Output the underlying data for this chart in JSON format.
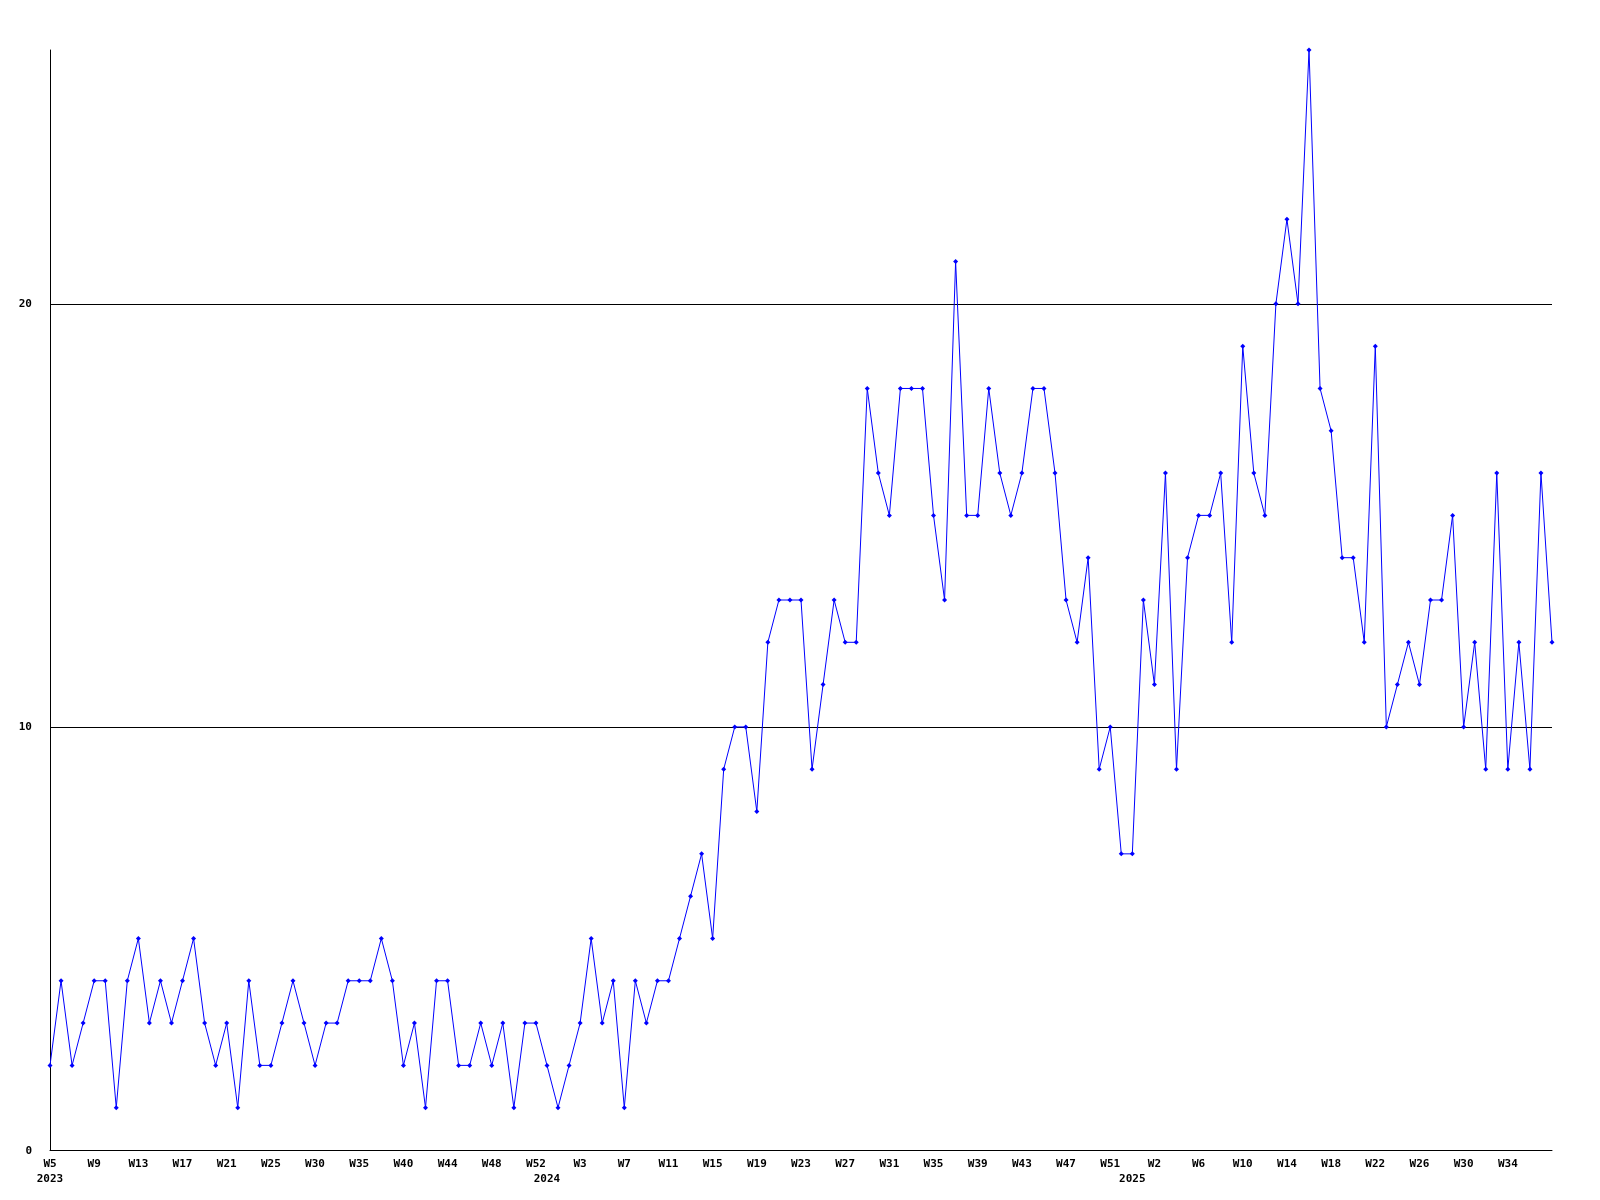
{
  "chart_data": {
    "type": "line",
    "categories": [
      "W5\n2023",
      null,
      null,
      null,
      "W9",
      null,
      null,
      null,
      "W13",
      null,
      null,
      null,
      "W17",
      null,
      null,
      null,
      "W21",
      null,
      null,
      null,
      "W25",
      null,
      null,
      null,
      "W30",
      null,
      null,
      null,
      "W35",
      null,
      null,
      null,
      "W40",
      null,
      null,
      null,
      "W44",
      null,
      null,
      null,
      "W48",
      null,
      null,
      null,
      "W52",
      "2024",
      null,
      null,
      "W3",
      null,
      null,
      null,
      "W7",
      null,
      null,
      null,
      "W11",
      null,
      null,
      null,
      "W15",
      null,
      null,
      null,
      "W19",
      null,
      null,
      null,
      "W23",
      null,
      null,
      null,
      "W27",
      null,
      null,
      null,
      "W31",
      null,
      null,
      null,
      "W35",
      null,
      null,
      null,
      "W39",
      null,
      null,
      null,
      "W43",
      null,
      null,
      null,
      "W47",
      null,
      null,
      null,
      "W51",
      null,
      "2025",
      null,
      "W2",
      null,
      null,
      null,
      "W6",
      null,
      null,
      null,
      "W10",
      null,
      null,
      null,
      "W14",
      null,
      null,
      null,
      "W18",
      null,
      null,
      null,
      "W22",
      null,
      null,
      null,
      "W26",
      null,
      null,
      null,
      "W30",
      null,
      null,
      null,
      "W34",
      null,
      null,
      null,
      null
    ],
    "series": [
      {
        "color": "#0000ff",
        "values": [
          2,
          4,
          2,
          3,
          4,
          4,
          1,
          4,
          5,
          3,
          4,
          3,
          4,
          5,
          3,
          2,
          3,
          1,
          4,
          2,
          2,
          3,
          4,
          3,
          2,
          3,
          3,
          4,
          4,
          4,
          5,
          4,
          2,
          3,
          1,
          4,
          4,
          2,
          2,
          3,
          2,
          3,
          1,
          3,
          3,
          2,
          1,
          2,
          3,
          5,
          3,
          4,
          1,
          4,
          3,
          4,
          4,
          5,
          6,
          7,
          5,
          9,
          10,
          10,
          8,
          12,
          13,
          13,
          13,
          9,
          11,
          13,
          12,
          12,
          18,
          16,
          15,
          18,
          18,
          18,
          15,
          13,
          21,
          15,
          15,
          18,
          16,
          15,
          16,
          18,
          18,
          16,
          13,
          12,
          14,
          9,
          10,
          7,
          7,
          13,
          11,
          16,
          9,
          14,
          15,
          15,
          16,
          12,
          19,
          16,
          15,
          20,
          22,
          20,
          26,
          18,
          17,
          14,
          14,
          12,
          19,
          10,
          11,
          12,
          11,
          13,
          13,
          15,
          10,
          12,
          9,
          16,
          9,
          12,
          9,
          16,
          12
        ]
      }
    ],
    "ylim": [
      0,
      26
    ],
    "yticks": [
      0,
      10,
      20
    ],
    "grid": "y",
    "marker": "diamond",
    "line_style": "solid"
  }
}
